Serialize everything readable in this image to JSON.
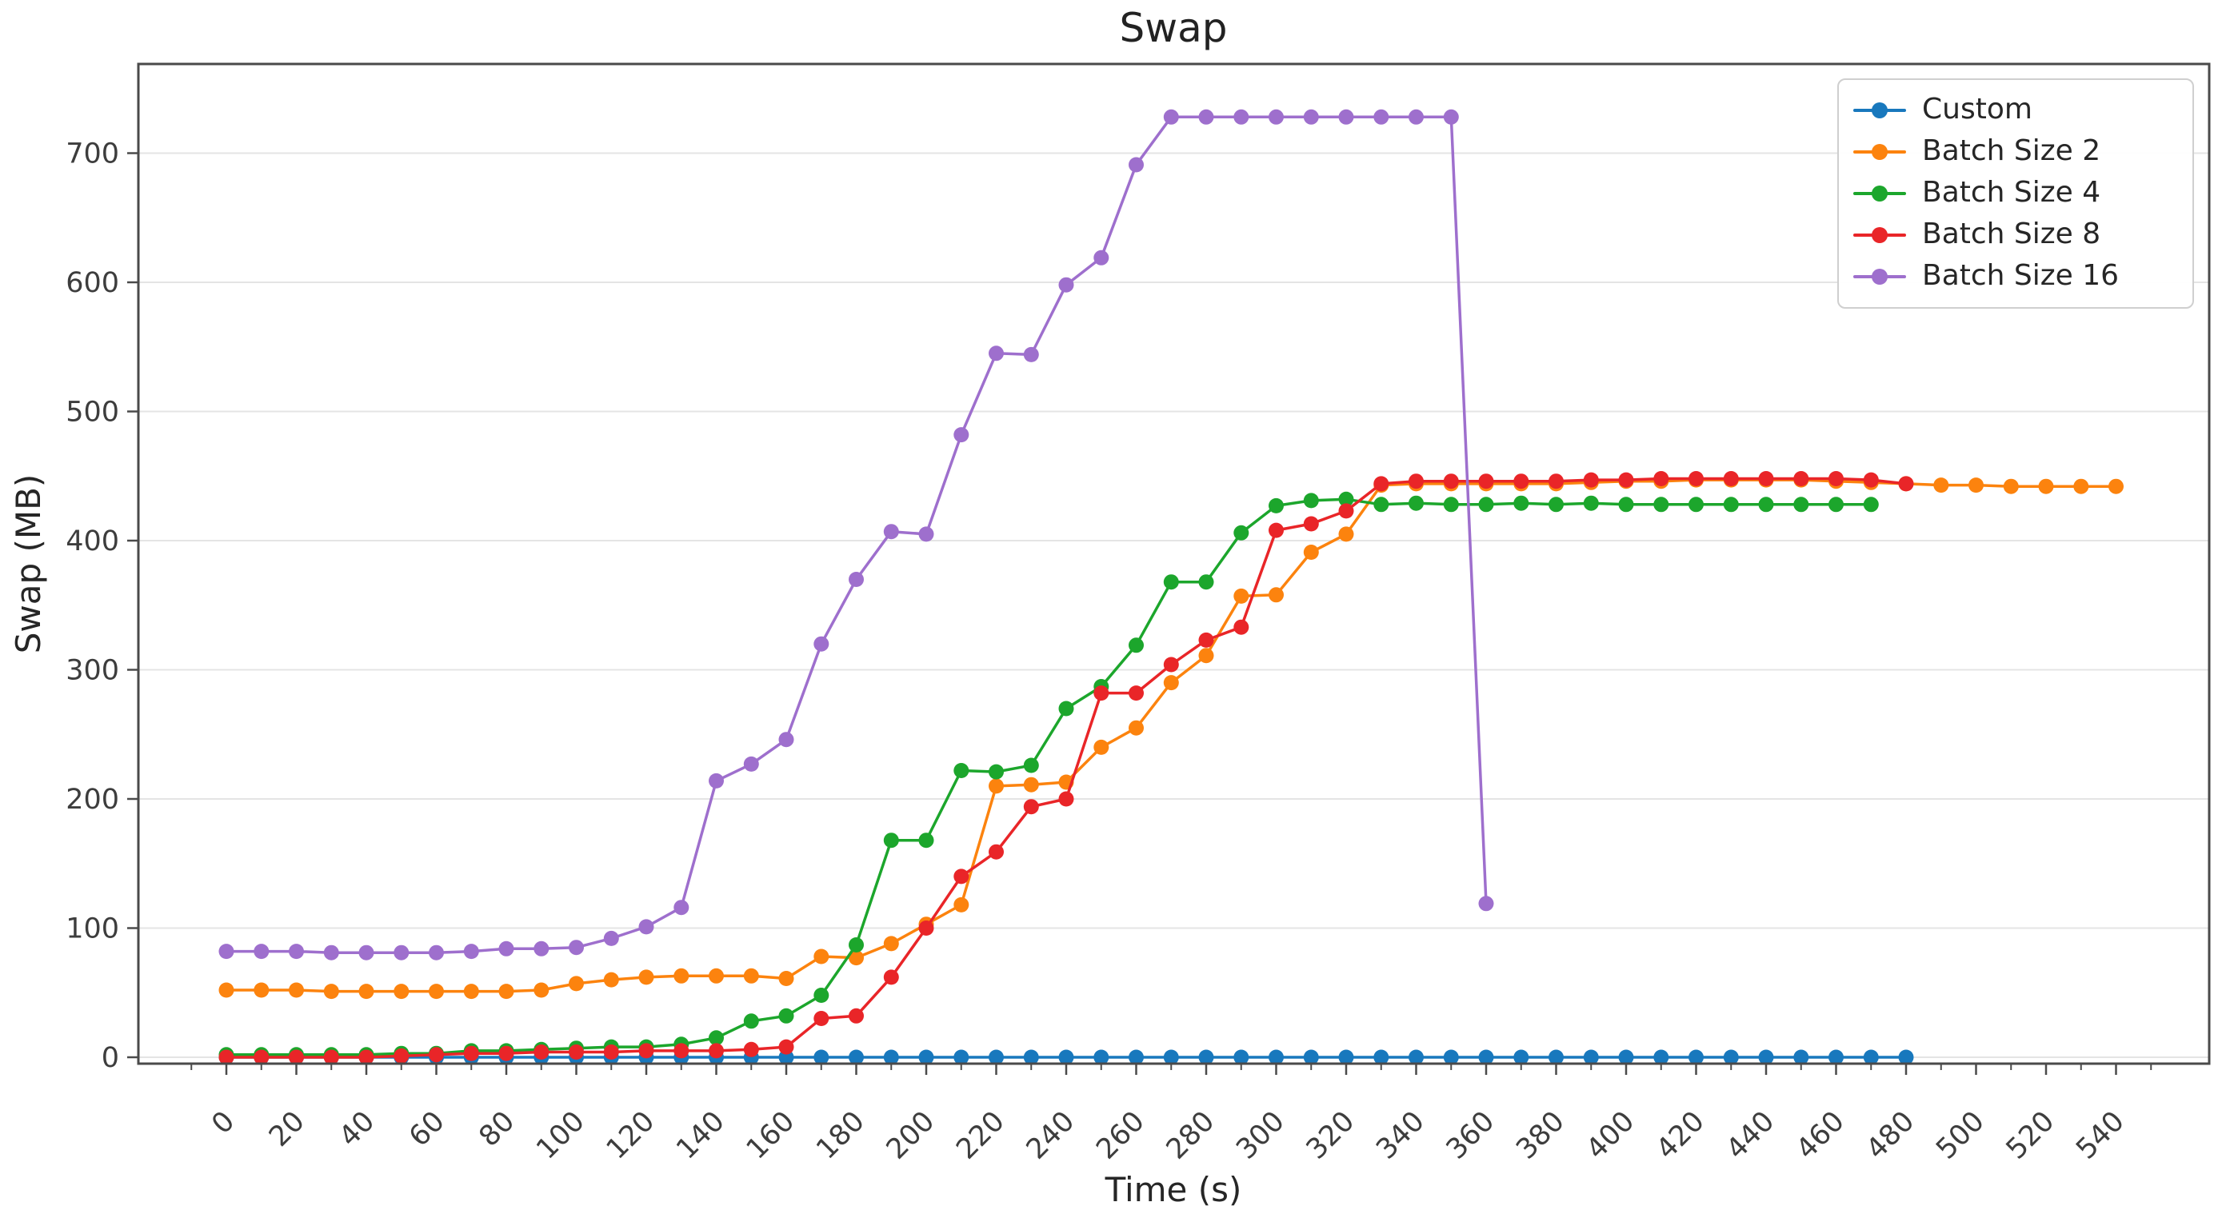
{
  "figure": {
    "title": "Swap",
    "xlabel": "Time (s)",
    "ylabel": "Swap (MB)"
  },
  "chart_data": {
    "type": "line",
    "title": "Swap",
    "xlabel": "Time (s)",
    "ylabel": "Swap (MB)",
    "x_unit_seconds": true,
    "x_start": 0,
    "x_step": 10,
    "xlim": [
      -25,
      566
    ],
    "ylim": [
      -5,
      769
    ],
    "xticks": {
      "start": 0,
      "end": 540,
      "major_step": 20,
      "minor_step": 10
    },
    "yticks": {
      "start": 0,
      "end": 700,
      "step": 100
    },
    "grid": "horizontal",
    "legend_position": "upper right",
    "colors": {
      "blue": "#1878bd",
      "orange": "#fc830e",
      "green": "#1ca62c",
      "red": "#e92528",
      "purple": "#9e6fcd",
      "grid": "#e4e4e4",
      "spine": "#4a4a4a",
      "tick_label": "#3d3d3d",
      "title": "#222222"
    },
    "series": [
      {
        "name": "Custom",
        "color": "#1878bd",
        "x_start": 0,
        "x_step": 10,
        "values": [
          0,
          0,
          0,
          0,
          0,
          0,
          0,
          0,
          0,
          0,
          0,
          0,
          0,
          0,
          0,
          0,
          0,
          0,
          0,
          0,
          0,
          0,
          0,
          0,
          0,
          0,
          0,
          0,
          0,
          0,
          0,
          0,
          0,
          0,
          0,
          0,
          0,
          0,
          0,
          0,
          0,
          0,
          0,
          0,
          0,
          0,
          0,
          0,
          0
        ]
      },
      {
        "name": "Batch Size 2",
        "color": "#fc830e",
        "x_start": 0,
        "x_step": 10,
        "values": [
          52,
          52,
          52,
          51,
          51,
          51,
          51,
          51,
          51,
          52,
          57,
          60,
          62,
          63,
          63,
          63,
          61,
          78,
          77,
          88,
          103,
          118,
          210,
          211,
          213,
          240,
          255,
          290,
          311,
          357,
          358,
          391,
          405,
          443,
          444,
          444,
          444,
          444,
          444,
          445,
          446,
          446,
          447,
          447,
          447,
          447,
          446,
          445,
          444,
          443,
          443,
          442,
          442,
          442,
          442
        ]
      },
      {
        "name": "Batch Size 4",
        "color": "#1ca62c",
        "x_start": 0,
        "x_step": 10,
        "values": [
          2,
          2,
          2,
          2,
          2,
          3,
          3,
          5,
          5,
          6,
          7,
          8,
          8,
          10,
          15,
          28,
          32,
          48,
          87,
          168,
          168,
          222,
          221,
          226,
          270,
          287,
          319,
          368,
          368,
          406,
          427,
          431,
          432,
          428,
          429,
          428,
          428,
          429,
          428,
          429,
          428,
          428,
          428,
          428,
          428,
          428,
          428,
          428
        ]
      },
      {
        "name": "Batch Size 8",
        "color": "#e92528",
        "x_start": 0,
        "x_step": 10,
        "values": [
          0,
          0,
          0,
          0,
          0,
          1,
          2,
          3,
          3,
          4,
          4,
          4,
          5,
          5,
          5,
          6,
          8,
          30,
          32,
          62,
          100,
          140,
          159,
          194,
          200,
          282,
          282,
          304,
          323,
          333,
          408,
          413,
          423,
          444,
          446,
          446,
          446,
          446,
          446,
          447,
          447,
          448,
          448,
          448,
          448,
          448,
          448,
          447,
          444
        ]
      },
      {
        "name": "Batch Size 16",
        "color": "#9e6fcd",
        "x_start": 0,
        "x_step": 10,
        "values": [
          82,
          82,
          82,
          81,
          81,
          81,
          81,
          82,
          84,
          84,
          85,
          92,
          101,
          116,
          214,
          227,
          246,
          320,
          370,
          407,
          405,
          482,
          545,
          544,
          598,
          619,
          691,
          728,
          728,
          728,
          728,
          728,
          728,
          728,
          728,
          728,
          119
        ]
      }
    ]
  },
  "legend": {
    "items": [
      {
        "label": "Custom",
        "color": "#1878bd"
      },
      {
        "label": "Batch Size 2",
        "color": "#fc830e"
      },
      {
        "label": "Batch Size 4",
        "color": "#1ca62c"
      },
      {
        "label": "Batch Size 8",
        "color": "#e92528"
      },
      {
        "label": "Batch Size 16",
        "color": "#9e6fcd"
      }
    ]
  }
}
